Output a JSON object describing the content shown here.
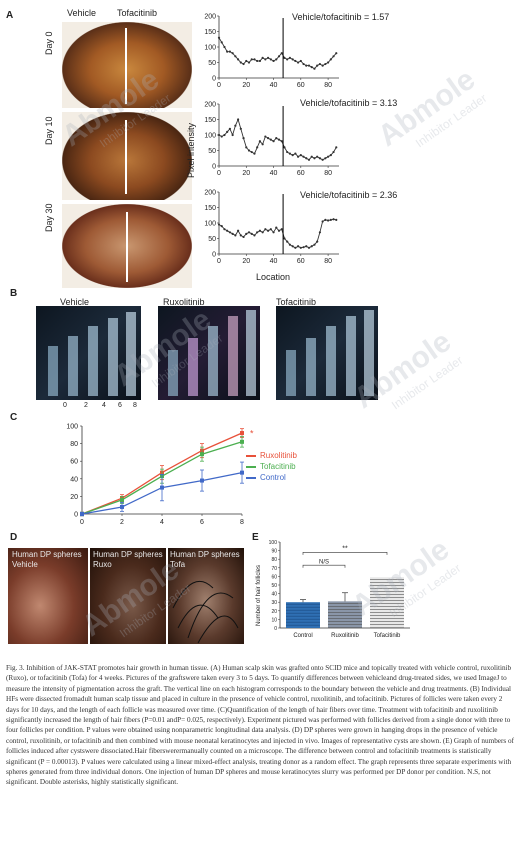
{
  "panelA": {
    "letter": "A",
    "col_vehicle": "Vehicle",
    "col_tofa": "Tofacitinib",
    "rows": [
      "Day 0",
      "Day 10",
      "Day 30"
    ],
    "ratios": [
      "Vehicle/tofacitinib = 1.57",
      "Vehicle/tofacitinib = 3.13",
      "Vehicle/tofacitinib = 2.36"
    ],
    "ylabel": "Pixel intensity",
    "xlabel": "Location",
    "yticks": [
      "200",
      "150",
      "100",
      "50",
      "0"
    ],
    "xticks": [
      "0",
      "20",
      "40",
      "60",
      "80"
    ]
  },
  "panelB": {
    "letter": "B",
    "labels": [
      "Vehicle",
      "Ruxolitinib",
      "Tofacitinib"
    ],
    "days": [
      "0",
      "2",
      "4",
      "6",
      "8"
    ]
  },
  "panelC": {
    "letter": "C",
    "yticks": [
      "100",
      "80",
      "60",
      "40",
      "20",
      "0"
    ],
    "xticks": [
      "0",
      "2",
      "4",
      "6",
      "8"
    ],
    "legend": [
      "Ruxolitinib",
      "Tofacitinib",
      "Control"
    ],
    "star": "*"
  },
  "panelD": {
    "letter": "D",
    "labels": [
      "Human DP spheres Vehicle",
      "Human DP spheres Ruxo",
      "Human DP spheres Tofa"
    ]
  },
  "panelE": {
    "letter": "E",
    "ylabel": "Number of hair follicles",
    "yticks": [
      "100",
      "90",
      "80",
      "70",
      "60",
      "50",
      "40",
      "30",
      "20",
      "10",
      "0"
    ],
    "categories": [
      "Control",
      "Ruxolitinib",
      "Tofacitinib"
    ],
    "sig_top": "**",
    "sig_ns": "N/S"
  },
  "watermark": {
    "brand": "Abmole",
    "tag": "Inhibitor Leader"
  },
  "caption": "Fig. 3. Inhibition of JAK-STAT promotes hair growth in human tissue. (A) Human scalp skin was grafted onto SCID mice and topically treated with vehicle control, ruxolitinib (Ruxo), or tofacitinib (Tofa) for 4 weeks. Pictures of the graftswere taken every 3 to 5 days. To quantify differences between vehicleand drug-treated sides, we used ImageJ to measure the intensity of pigmentation across the graft. The vertical line on each histogram corresponds to the boundary between the vehicle and drug treatments. (B) Individual HFs were dissected fromadult human scalp tissue and placed in culture in the presence of vehicle control, ruxolitinib, and tofacitinib. Pictures of follicles were taken every 2 days for 10 days, and the length of each follicle was measured over time. (C)Quantification of the length of hair fibers over time. Treatment with tofacitinib and ruxolitinib significantly increased the length of hair fibers (P=0.01 andP= 0.025, respectively). Experiment pictured was performed with follicles derived from a single donor with three to four follicles per condition. P values were obtained using nonparametric longitudinal data analysis. (D) DP spheres were grown in hanging drops in the presence of vehicle control, ruxolitinib, or tofacitinib and then combined with mouse neonatal keratinocytes and injected in vivo. Images of representative cysts are shown. (E) Graph of numbers of follicles induced after cystswere dissociated.Hair fiberswerermanually counted on a microscope. The difference between control and tofacitinib treatments is statistically significant (P = 0.00013). P values were calculated using a linear mixed-effect analysis, treating donor as a random effect. The graph represents three separate experiments with spheres generated from three individual donors. One injection of human DP spheres and mouse keratinocytes slurry was performed per DP donor per condition. N.S, not significant. Double asterisks, highly statistically significant.",
  "chart_data": [
    {
      "type": "line",
      "panel": "A-Day0",
      "title": "Vehicle/tofacitinib = 1.57",
      "xlabel": "",
      "ylabel": "",
      "xlim": [
        0,
        88
      ],
      "ylim": [
        0,
        200
      ],
      "boundary_x": 47,
      "series": [
        {
          "x": [
            0,
            2,
            4,
            6,
            8,
            10,
            12,
            14,
            16,
            18,
            20,
            22,
            24,
            26,
            28,
            30,
            32,
            34,
            36,
            38,
            40,
            42,
            44,
            46,
            48,
            50,
            52,
            54,
            56,
            58,
            60,
            62,
            64,
            66,
            68,
            70,
            72,
            74,
            76,
            78,
            80,
            82,
            84,
            86
          ],
          "y": [
            130,
            115,
            100,
            85,
            85,
            80,
            70,
            60,
            50,
            45,
            55,
            50,
            60,
            60,
            55,
            55,
            65,
            60,
            65,
            60,
            55,
            60,
            70,
            80,
            65,
            60,
            65,
            60,
            55,
            50,
            55,
            45,
            40,
            40,
            35,
            30,
            40,
            45,
            40,
            45,
            50,
            60,
            70,
            80
          ]
        }
      ]
    },
    {
      "type": "line",
      "panel": "A-Day10",
      "title": "Vehicle/tofacitinib = 3.13",
      "xlabel": "",
      "ylabel": "Pixel intensity",
      "xlim": [
        0,
        88
      ],
      "ylim": [
        0,
        200
      ],
      "boundary_x": 47,
      "series": [
        {
          "x": [
            0,
            2,
            4,
            6,
            8,
            10,
            12,
            14,
            16,
            18,
            20,
            22,
            24,
            26,
            28,
            30,
            32,
            34,
            36,
            38,
            40,
            42,
            44,
            46,
            48,
            50,
            52,
            54,
            56,
            58,
            60,
            62,
            64,
            66,
            68,
            70,
            72,
            74,
            76,
            78,
            80,
            82,
            84,
            86
          ],
          "y": [
            100,
            95,
            100,
            110,
            120,
            100,
            130,
            150,
            120,
            90,
            60,
            50,
            45,
            40,
            60,
            80,
            70,
            95,
            90,
            85,
            80,
            90,
            85,
            80,
            60,
            45,
            40,
            35,
            40,
            30,
            35,
            30,
            25,
            20,
            30,
            25,
            30,
            25,
            20,
            25,
            30,
            35,
            45,
            60
          ]
        }
      ]
    },
    {
      "type": "line",
      "panel": "A-Day30",
      "title": "Vehicle/tofacitinib = 2.36",
      "xlabel": "Location",
      "ylabel": "",
      "xlim": [
        0,
        88
      ],
      "ylim": [
        0,
        200
      ],
      "boundary_x": 47,
      "series": [
        {
          "x": [
            0,
            2,
            4,
            6,
            8,
            10,
            12,
            14,
            16,
            18,
            20,
            22,
            24,
            26,
            28,
            30,
            32,
            34,
            36,
            38,
            40,
            42,
            44,
            46,
            48,
            50,
            52,
            54,
            56,
            58,
            60,
            62,
            64,
            66,
            68,
            70,
            72,
            74,
            76,
            78,
            80,
            82,
            84,
            86
          ],
          "y": [
            95,
            90,
            80,
            75,
            70,
            65,
            60,
            75,
            60,
            55,
            65,
            70,
            65,
            60,
            70,
            75,
            70,
            80,
            75,
            80,
            70,
            85,
            75,
            80,
            50,
            40,
            30,
            25,
            20,
            25,
            20,
            22,
            25,
            20,
            25,
            30,
            40,
            70,
            105,
            110,
            108,
            110,
            112,
            110
          ]
        }
      ]
    },
    {
      "type": "line",
      "panel": "C",
      "xlabel": "",
      "ylabel": "",
      "xlim": [
        0,
        8
      ],
      "ylim": [
        0,
        100
      ],
      "x": [
        0,
        2,
        4,
        6,
        8
      ],
      "series": [
        {
          "name": "Ruxolitinib",
          "color": "#e8513a",
          "values": [
            0,
            18,
            47,
            72,
            92
          ],
          "err": [
            2,
            4,
            8,
            8,
            5
          ]
        },
        {
          "name": "Tofacitinib",
          "color": "#4caf50",
          "values": [
            0,
            16,
            43,
            68,
            82
          ],
          "err": [
            2,
            4,
            8,
            8,
            6
          ]
        },
        {
          "name": "Control",
          "color": "#4169c8",
          "values": [
            0,
            8,
            30,
            38,
            47
          ],
          "err": [
            2,
            5,
            15,
            12,
            12
          ]
        }
      ]
    },
    {
      "type": "bar",
      "panel": "E",
      "ylabel": "Number of hair follicles",
      "ylim": [
        0,
        100
      ],
      "categories": [
        "Control",
        "Ruxolitinib",
        "Tofacitinib"
      ],
      "values": [
        30,
        31,
        59
      ],
      "err": [
        3,
        10,
        0
      ]
    }
  ]
}
